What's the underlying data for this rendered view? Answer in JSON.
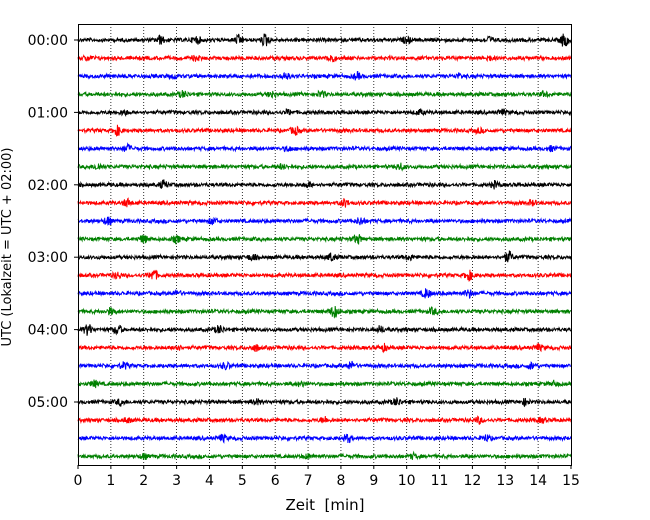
{
  "chart_data": {
    "type": "line",
    "title": "",
    "xlabel": "Zeit  [min]",
    "ylabel": "UTC (Lokalzeit = UTC + 02:00)",
    "xlim": [
      0,
      15
    ],
    "x_ticks": [
      "0",
      "1",
      "2",
      "3",
      "4",
      "5",
      "6",
      "7",
      "8",
      "9",
      "10",
      "11",
      "12",
      "13",
      "14",
      "15"
    ],
    "y_ticks": [
      "00:00",
      "01:00",
      "02:00",
      "03:00",
      "04:00",
      "05:00"
    ],
    "grid": {
      "x": true,
      "y": false,
      "style": "dotted"
    },
    "trace_interval_minutes": 15,
    "colors": [
      "#000000",
      "#ff0000",
      "#0000ff",
      "#008000"
    ],
    "series": [
      {
        "time": "00:00",
        "color": "#000000",
        "bursts": [
          [
            2.5,
            0.5
          ],
          [
            3.6,
            0.5
          ],
          [
            4.9,
            0.6
          ],
          [
            5.7,
            0.8
          ],
          [
            10.0,
            0.4
          ],
          [
            12.5,
            0.4
          ],
          [
            14.8,
            0.9
          ]
        ]
      },
      {
        "time": "00:15",
        "color": "#ff0000",
        "bursts": [
          [
            0.3,
            0.3
          ],
          [
            3.6,
            0.3
          ],
          [
            7.7,
            0.6
          ],
          [
            12.5,
            0.3
          ]
        ]
      },
      {
        "time": "00:30",
        "color": "#0000ff",
        "bursts": [
          [
            2.9,
            0.3
          ],
          [
            6.3,
            0.5
          ],
          [
            8.5,
            0.4
          ],
          [
            11.6,
            0.3
          ]
        ]
      },
      {
        "time": "00:45",
        "color": "#008000",
        "bursts": [
          [
            3.2,
            0.4
          ],
          [
            5.9,
            0.4
          ],
          [
            7.4,
            0.4
          ],
          [
            14.2,
            0.3
          ]
        ]
      },
      {
        "time": "01:00",
        "color": "#000000",
        "bursts": [
          [
            1.4,
            0.3
          ],
          [
            6.4,
            0.3
          ],
          [
            10.4,
            0.3
          ],
          [
            12.9,
            0.3
          ]
        ]
      },
      {
        "time": "01:15",
        "color": "#ff0000",
        "bursts": [
          [
            1.2,
            0.6
          ],
          [
            6.6,
            0.5
          ],
          [
            12.2,
            0.3
          ]
        ]
      },
      {
        "time": "01:30",
        "color": "#0000ff",
        "bursts": [
          [
            1.5,
            0.5
          ],
          [
            6.4,
            0.3
          ],
          [
            14.4,
            0.3
          ]
        ]
      },
      {
        "time": "01:45",
        "color": "#008000",
        "bursts": [
          [
            0.6,
            0.4
          ],
          [
            6.2,
            0.3
          ],
          [
            9.8,
            0.4
          ]
        ]
      },
      {
        "time": "02:00",
        "color": "#000000",
        "bursts": [
          [
            2.6,
            0.5
          ],
          [
            7.0,
            0.3
          ],
          [
            12.7,
            0.4
          ]
        ]
      },
      {
        "time": "02:15",
        "color": "#ff0000",
        "bursts": [
          [
            1.5,
            0.5
          ],
          [
            8.1,
            0.5
          ],
          [
            13.8,
            0.3
          ]
        ]
      },
      {
        "time": "02:30",
        "color": "#0000ff",
        "bursts": [
          [
            0.9,
            0.5
          ],
          [
            4.1,
            0.4
          ],
          [
            8.6,
            0.5
          ]
        ]
      },
      {
        "time": "02:45",
        "color": "#008000",
        "bursts": [
          [
            2.0,
            0.5
          ],
          [
            3.0,
            0.4
          ],
          [
            8.5,
            0.6
          ]
        ]
      },
      {
        "time": "03:00",
        "color": "#000000",
        "bursts": [
          [
            5.3,
            0.4
          ],
          [
            7.7,
            0.5
          ],
          [
            10.1,
            0.3
          ],
          [
            13.1,
            0.7
          ]
        ]
      },
      {
        "time": "03:15",
        "color": "#ff0000",
        "bursts": [
          [
            1.2,
            0.4
          ],
          [
            2.3,
            0.7
          ],
          [
            11.9,
            0.6
          ]
        ]
      },
      {
        "time": "03:30",
        "color": "#0000ff",
        "bursts": [
          [
            3.0,
            0.3
          ],
          [
            10.6,
            0.6
          ],
          [
            11.9,
            0.5
          ]
        ]
      },
      {
        "time": "03:45",
        "color": "#008000",
        "bursts": [
          [
            1.0,
            0.4
          ],
          [
            7.8,
            0.8
          ],
          [
            10.8,
            0.4
          ]
        ]
      },
      {
        "time": "04:00",
        "color": "#000000",
        "bursts": [
          [
            0.3,
            0.7
          ],
          [
            1.2,
            0.6
          ],
          [
            4.3,
            0.5
          ],
          [
            9.2,
            0.4
          ]
        ]
      },
      {
        "time": "04:15",
        "color": "#ff0000",
        "bursts": [
          [
            3.0,
            0.4
          ],
          [
            5.4,
            0.4
          ],
          [
            9.3,
            0.4
          ],
          [
            14.0,
            0.4
          ]
        ]
      },
      {
        "time": "04:30",
        "color": "#0000ff",
        "bursts": [
          [
            1.4,
            0.4
          ],
          [
            4.5,
            0.4
          ],
          [
            8.3,
            0.5
          ],
          [
            13.8,
            0.4
          ]
        ]
      },
      {
        "time": "04:45",
        "color": "#008000",
        "bursts": [
          [
            0.5,
            0.4
          ],
          [
            6.8,
            0.3
          ],
          [
            14.5,
            0.3
          ]
        ]
      },
      {
        "time": "05:00",
        "color": "#000000",
        "bursts": [
          [
            1.3,
            0.4
          ],
          [
            5.4,
            0.4
          ],
          [
            9.7,
            0.5
          ],
          [
            13.6,
            0.4
          ]
        ]
      },
      {
        "time": "05:15",
        "color": "#ff0000",
        "bursts": [
          [
            1.5,
            0.3
          ],
          [
            7.5,
            0.4
          ],
          [
            12.2,
            0.4
          ],
          [
            14.1,
            0.3
          ]
        ]
      },
      {
        "time": "05:30",
        "color": "#0000ff",
        "bursts": [
          [
            4.4,
            0.4
          ],
          [
            8.2,
            0.5
          ],
          [
            12.4,
            0.4
          ]
        ]
      },
      {
        "time": "05:45",
        "color": "#008000",
        "bursts": [
          [
            2.0,
            0.3
          ],
          [
            7.0,
            0.3
          ],
          [
            10.2,
            0.3
          ]
        ]
      }
    ]
  }
}
